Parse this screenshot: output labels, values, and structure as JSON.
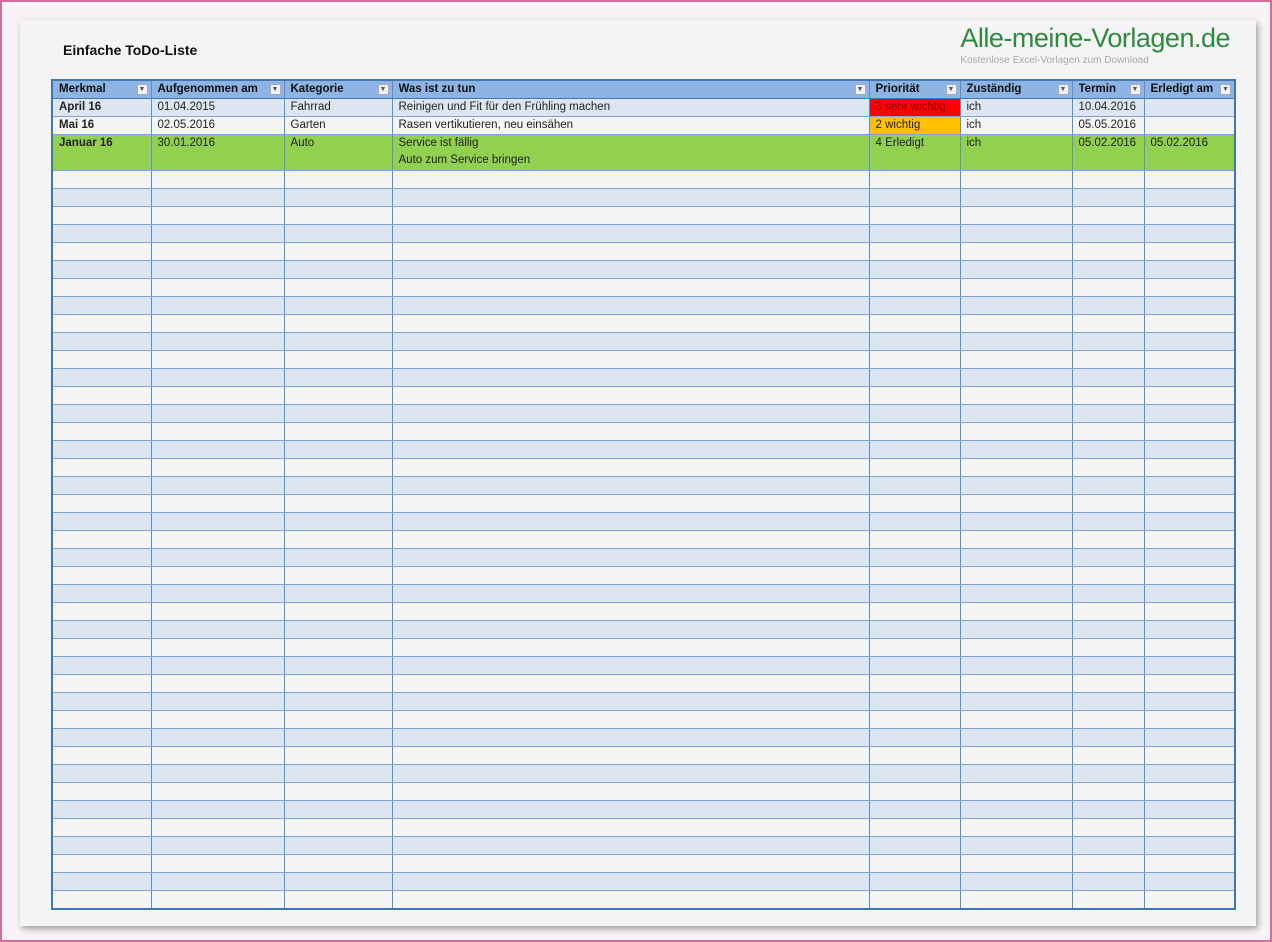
{
  "title": "Einfache ToDo-Liste",
  "logo": {
    "brand": "Alle-meine-Vorlagen.de",
    "tagline": "Kostenlose Excel-Vorlagen zum Download"
  },
  "columns": [
    "Merkmal",
    "Aufgenommen am",
    "Kategorie",
    "Was ist zu tun",
    "Priorität",
    "Zuständig",
    "Termin",
    "Erledigt am"
  ],
  "rows": [
    {
      "merkmal": "April 16",
      "aufgenommen": "01.04.2015",
      "kategorie": "Fahrrad",
      "aufgabe": "Reinigen und Fit für den Frühling machen",
      "aufgabe2": "",
      "prioritaet": "3 sehr wichtig",
      "zustaendig": "ich",
      "termin": "10.04.2016",
      "erledigt": ""
    },
    {
      "merkmal": "Mai 16",
      "aufgenommen": "02.05.2016",
      "kategorie": "Garten",
      "aufgabe": "Rasen vertikutieren, neu einsähen",
      "aufgabe2": "",
      "prioritaet": "2 wichtig",
      "zustaendig": "ich",
      "termin": "05.05.2016",
      "erledigt": ""
    },
    {
      "merkmal": "Januar 16",
      "aufgenommen": "30.01.2016",
      "kategorie": "Auto",
      "aufgabe": "Service ist fällig",
      "aufgabe2": "Auto zum Service bringen",
      "prioritaet": "4 Erledigt",
      "zustaendig": "ich",
      "termin": "05.02.2016",
      "erledigt": "05.02.2016"
    }
  ],
  "colors": {
    "header": "#8db4e2",
    "band": "#dce6f1",
    "done": "#92d050",
    "very_important": "#ff0000",
    "important": "#ffc000",
    "brand": "#2e8b3c"
  }
}
